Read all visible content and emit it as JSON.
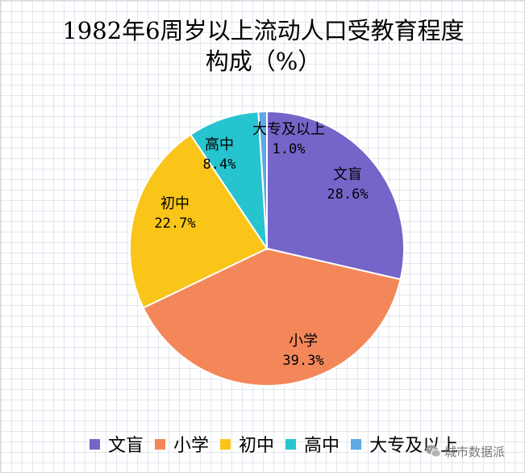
{
  "chart_data": {
    "type": "pie",
    "title_lines": [
      "1982年6周岁以上流动人口受教育程度",
      "构成（%）"
    ],
    "categories": [
      "文盲",
      "小学",
      "初中",
      "高中",
      "大专及以上"
    ],
    "values": [
      28.6,
      39.3,
      22.7,
      8.4,
      1.0
    ],
    "value_labels": [
      "28.6%",
      "39.3%",
      "22.7%",
      "8.4%",
      "1.0%"
    ],
    "colors": [
      "#7565c9",
      "#f4875a",
      "#f9c518",
      "#26c4cf",
      "#5ea8e4"
    ],
    "legend_position": "bottom",
    "grid": true
  },
  "watermark": {
    "text": "城市数据派",
    "icon": "wechat-icon"
  }
}
